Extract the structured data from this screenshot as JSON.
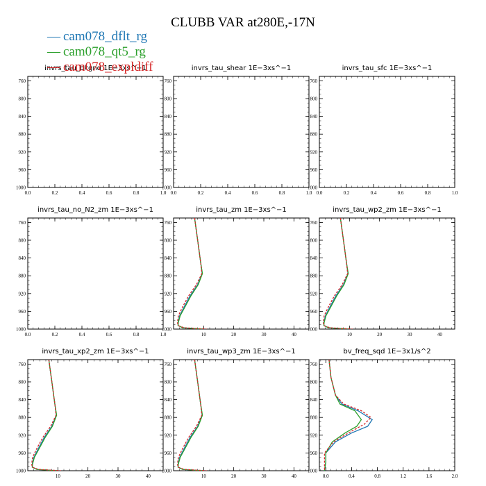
{
  "figure_title": "CLUBB VAR at280E,-17N",
  "legend": [
    {
      "label": "cam078_dflt_rg",
      "color": "#1f77b4",
      "line": "—"
    },
    {
      "label": "cam078_qt5_rg",
      "color": "#2ca02c",
      "line": "—"
    },
    {
      "label": "cam078_expldiff",
      "color": "#d62728",
      "line": "—"
    }
  ],
  "colors": {
    "dflt": "#1f77b4",
    "qt5": "#2ca02c",
    "expl": "#d62728"
  },
  "chart_data": [
    {
      "type": "line",
      "title": "invrs_tau_bkgnd   1E−3xs^−1",
      "xlim": [
        0,
        1
      ],
      "ylim": [
        1000,
        750
      ],
      "xticks": [
        "0.0",
        "0.2",
        "0.4",
        "0.6",
        "0.8",
        "1.0"
      ],
      "yticks": [
        "760",
        "800",
        "840",
        "880",
        "920",
        "960",
        "1000"
      ],
      "xtick_values": [
        0,
        0.2,
        0.4,
        0.6,
        0.8,
        1.0
      ],
      "ytick_values": [
        760,
        800,
        840,
        880,
        920,
        960,
        1000
      ],
      "series": []
    },
    {
      "type": "line",
      "title": "invrs_tau_shear   1E−3xs^−1",
      "xlim": [
        0,
        1
      ],
      "ylim": [
        1000,
        750
      ],
      "xticks": [
        "0.0",
        "0.2",
        "0.4",
        "0.6",
        "0.8",
        "1.0"
      ],
      "yticks": [
        "760",
        "800",
        "840",
        "880",
        "920",
        "960",
        "1000"
      ],
      "xtick_values": [
        0,
        0.2,
        0.4,
        0.6,
        0.8,
        1.0
      ],
      "ytick_values": [
        760,
        800,
        840,
        880,
        920,
        960,
        1000
      ],
      "series": []
    },
    {
      "type": "line",
      "title": "invrs_tau_sfc   1E−3xs^−1",
      "xlim": [
        0,
        1
      ],
      "ylim": [
        1000,
        750
      ],
      "xticks": [
        "0.0",
        "0.2",
        "0.4",
        "0.6",
        "0.8",
        "1.0"
      ],
      "yticks": [
        "760",
        "800",
        "840",
        "880",
        "920",
        "960",
        "1000"
      ],
      "xtick_values": [
        0,
        0.2,
        0.4,
        0.6,
        0.8,
        1.0
      ],
      "ytick_values": [
        760,
        800,
        840,
        880,
        920,
        960,
        1000
      ],
      "series": []
    },
    {
      "type": "line",
      "title": "invrs_tau_no_N2_zm   1E−3xs^−1",
      "xlim": [
        0,
        1
      ],
      "ylim": [
        1000,
        750
      ],
      "xticks": [
        "0.0",
        "0.2",
        "0.4",
        "0.6",
        "0.8",
        "1.0"
      ],
      "yticks": [
        "760",
        "800",
        "840",
        "880",
        "920",
        "960",
        "1000"
      ],
      "xtick_values": [
        0,
        0.2,
        0.4,
        0.6,
        0.8,
        1.0
      ],
      "ytick_values": [
        760,
        800,
        840,
        880,
        920,
        960,
        1000
      ],
      "series": []
    },
    {
      "type": "line",
      "title": "invrs_tau_zm   1E−3xs^−1",
      "xlim": [
        0,
        45
      ],
      "ylim": [
        1000,
        750
      ],
      "xticks": [
        "10",
        "20",
        "30",
        "40"
      ],
      "yticks": [
        "760",
        "800",
        "840",
        "880",
        "920",
        "960",
        "1000"
      ],
      "xtick_values": [
        10,
        20,
        30,
        40
      ],
      "ytick_values": [
        760,
        800,
        840,
        880,
        920,
        960,
        1000
      ],
      "series": [
        {
          "key": "dflt",
          "x": [
            7.0,
            8.0,
            9.0,
            9.5,
            8.0,
            5.5,
            3.5,
            2.0,
            1.5,
            1.5,
            3.0,
            10.0
          ],
          "y": [
            750,
            800,
            850,
            875,
            900,
            925,
            950,
            970,
            985,
            992,
            997,
            1000
          ]
        },
        {
          "key": "qt5",
          "x": [
            7.0,
            8.0,
            9.0,
            9.6,
            8.2,
            5.8,
            3.8,
            2.2,
            1.6,
            1.5,
            3.0,
            10.0
          ],
          "y": [
            750,
            800,
            850,
            875,
            900,
            925,
            950,
            970,
            985,
            992,
            997,
            1000
          ]
        },
        {
          "key": "expl",
          "x": [
            7.0,
            8.0,
            9.0,
            9.4,
            7.6,
            5.0,
            3.0,
            1.6,
            1.3,
            1.5,
            3.5,
            11.0
          ],
          "y": [
            750,
            800,
            850,
            875,
            900,
            925,
            950,
            970,
            985,
            992,
            997,
            1000
          ]
        }
      ]
    },
    {
      "type": "line",
      "title": "invrs_tau_wp2_zm   1E−3xs^−1",
      "xlim": [
        0,
        45
      ],
      "ylim": [
        1000,
        750
      ],
      "xticks": [
        "10",
        "20",
        "30",
        "40"
      ],
      "yticks": [
        "760",
        "800",
        "840",
        "880",
        "920",
        "960",
        "1000"
      ],
      "xtick_values": [
        10,
        20,
        30,
        40
      ],
      "ytick_values": [
        760,
        800,
        840,
        880,
        920,
        960,
        1000
      ],
      "series": [
        {
          "key": "dflt",
          "x": [
            7.0,
            8.0,
            9.0,
            9.5,
            8.0,
            5.5,
            3.5,
            2.0,
            1.5,
            1.5,
            3.0,
            10.0
          ],
          "y": [
            750,
            800,
            850,
            875,
            900,
            925,
            950,
            970,
            985,
            992,
            997,
            1000
          ]
        },
        {
          "key": "qt5",
          "x": [
            7.0,
            8.0,
            9.0,
            9.6,
            8.2,
            5.8,
            3.8,
            2.2,
            1.6,
            1.5,
            3.0,
            10.0
          ],
          "y": [
            750,
            800,
            850,
            875,
            900,
            925,
            950,
            970,
            985,
            992,
            997,
            1000
          ]
        },
        {
          "key": "expl",
          "x": [
            7.0,
            8.0,
            9.0,
            9.4,
            7.6,
            5.0,
            3.0,
            1.6,
            1.3,
            1.5,
            3.5,
            11.0
          ],
          "y": [
            750,
            800,
            850,
            875,
            900,
            925,
            950,
            970,
            985,
            992,
            997,
            1000
          ]
        }
      ]
    },
    {
      "type": "line",
      "title": "invrs_tau_xp2_zm   1E−3xs^−1",
      "xlim": [
        0,
        45
      ],
      "ylim": [
        1000,
        750
      ],
      "xticks": [
        "10",
        "20",
        "30",
        "40"
      ],
      "yticks": [
        "760",
        "800",
        "840",
        "880",
        "920",
        "960",
        "1000"
      ],
      "xtick_values": [
        10,
        20,
        30,
        40
      ],
      "ytick_values": [
        760,
        800,
        840,
        880,
        920,
        960,
        1000
      ],
      "series": [
        {
          "key": "dflt",
          "x": [
            7.0,
            8.0,
            9.0,
            9.5,
            8.0,
            5.5,
            3.5,
            2.0,
            1.5,
            1.5,
            3.0,
            10.0
          ],
          "y": [
            750,
            800,
            850,
            875,
            900,
            925,
            950,
            970,
            985,
            992,
            997,
            1000
          ]
        },
        {
          "key": "qt5",
          "x": [
            7.0,
            8.0,
            9.0,
            9.6,
            8.2,
            5.8,
            3.8,
            2.2,
            1.6,
            1.5,
            3.0,
            10.0
          ],
          "y": [
            750,
            800,
            850,
            875,
            900,
            925,
            950,
            970,
            985,
            992,
            997,
            1000
          ]
        },
        {
          "key": "expl",
          "x": [
            7.0,
            8.0,
            9.0,
            9.4,
            7.6,
            5.0,
            3.0,
            1.6,
            1.3,
            1.5,
            3.5,
            11.0
          ],
          "y": [
            750,
            800,
            850,
            875,
            900,
            925,
            950,
            970,
            985,
            992,
            997,
            1000
          ]
        }
      ]
    },
    {
      "type": "line",
      "title": "invrs_tau_wp3_zm   1E−3xs^−1",
      "xlim": [
        0,
        45
      ],
      "ylim": [
        1000,
        750
      ],
      "xticks": [
        "10",
        "20",
        "30",
        "40"
      ],
      "yticks": [
        "760",
        "800",
        "840",
        "880",
        "920",
        "960",
        "1000"
      ],
      "xtick_values": [
        10,
        20,
        30,
        40
      ],
      "ytick_values": [
        760,
        800,
        840,
        880,
        920,
        960,
        1000
      ],
      "series": [
        {
          "key": "dflt",
          "x": [
            7.0,
            8.0,
            9.0,
            9.5,
            8.0,
            5.5,
            3.5,
            2.0,
            1.5,
            1.5,
            3.0,
            10.0
          ],
          "y": [
            750,
            800,
            850,
            875,
            900,
            925,
            950,
            970,
            985,
            992,
            997,
            1000
          ]
        },
        {
          "key": "qt5",
          "x": [
            7.0,
            8.0,
            9.0,
            9.6,
            8.2,
            5.8,
            3.8,
            2.2,
            1.6,
            1.5,
            3.0,
            10.0
          ],
          "y": [
            750,
            800,
            850,
            875,
            900,
            925,
            950,
            970,
            985,
            992,
            997,
            1000
          ]
        },
        {
          "key": "expl",
          "x": [
            7.0,
            8.0,
            9.0,
            9.4,
            7.6,
            5.0,
            3.0,
            1.6,
            1.3,
            1.5,
            3.5,
            11.0
          ],
          "y": [
            750,
            800,
            850,
            875,
            900,
            925,
            950,
            970,
            985,
            992,
            997,
            1000
          ]
        }
      ]
    },
    {
      "type": "line",
      "title": "bv_freq_sqd   1E−3x1/s^2",
      "xlim": [
        -0.1,
        2.0
      ],
      "ylim": [
        1000,
        750
      ],
      "xticks": [
        "0.0",
        "0.4",
        "0.8",
        "1.2",
        "1.6",
        "2.0"
      ],
      "yticks": [
        "760",
        "800",
        "840",
        "880",
        "920",
        "960",
        "1000"
      ],
      "xtick_values": [
        0,
        0.4,
        0.8,
        1.2,
        1.6,
        2.0
      ],
      "ytick_values": [
        760,
        800,
        840,
        880,
        920,
        960,
        1000
      ],
      "series": [
        {
          "key": "dflt",
          "x": [
            0.05,
            0.08,
            0.15,
            0.25,
            0.5,
            0.72,
            0.65,
            0.4,
            0.15,
            0.0,
            0.0,
            -0.02
          ],
          "y": [
            750,
            790,
            830,
            850,
            865,
            885,
            900,
            915,
            935,
            960,
            980,
            1000
          ]
        },
        {
          "key": "qt5",
          "x": [
            0.05,
            0.08,
            0.15,
            0.22,
            0.45,
            0.55,
            0.48,
            0.3,
            0.1,
            0.0,
            0.0,
            -0.02
          ],
          "y": [
            750,
            790,
            830,
            850,
            865,
            885,
            900,
            915,
            935,
            960,
            980,
            1000
          ]
        },
        {
          "key": "expl",
          "x": [
            0.05,
            0.08,
            0.15,
            0.28,
            0.55,
            0.7,
            0.6,
            0.35,
            0.12,
            -0.02,
            -0.02,
            -0.02
          ],
          "y": [
            750,
            790,
            830,
            850,
            865,
            880,
            895,
            915,
            935,
            960,
            980,
            1000
          ]
        }
      ]
    }
  ]
}
